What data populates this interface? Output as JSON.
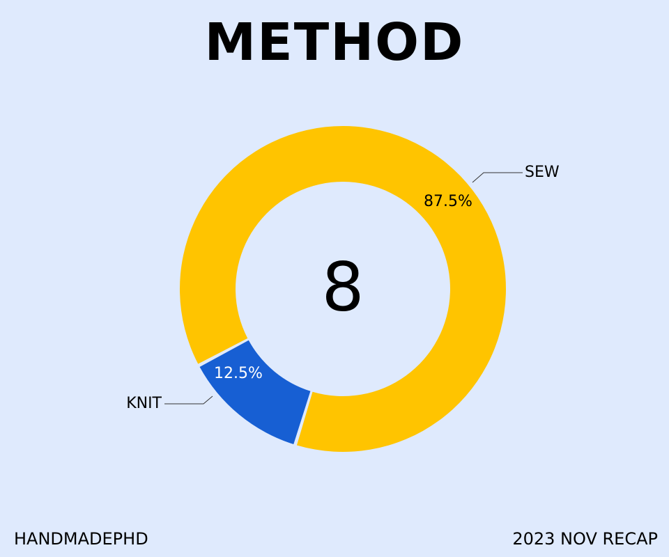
{
  "title": "METHOD",
  "center_value": "8",
  "footer": {
    "left": "HANDMADEPHD",
    "right": "2023 NOV RECAP"
  },
  "chart_data": {
    "type": "pie",
    "subtype": "donut",
    "slices": [
      {
        "label": "SEW",
        "value": 87.5,
        "value_label": "87.5%",
        "color": "#ffc400",
        "label_color": "#000000"
      },
      {
        "label": "KNIT",
        "value": 12.5,
        "value_label": "12.5%",
        "color": "#175fd3",
        "label_color": "#ffffff"
      }
    ],
    "center_label": "8",
    "legend": "none"
  },
  "colors": {
    "background": "#dfeafd",
    "separator": "#dfeafd"
  }
}
